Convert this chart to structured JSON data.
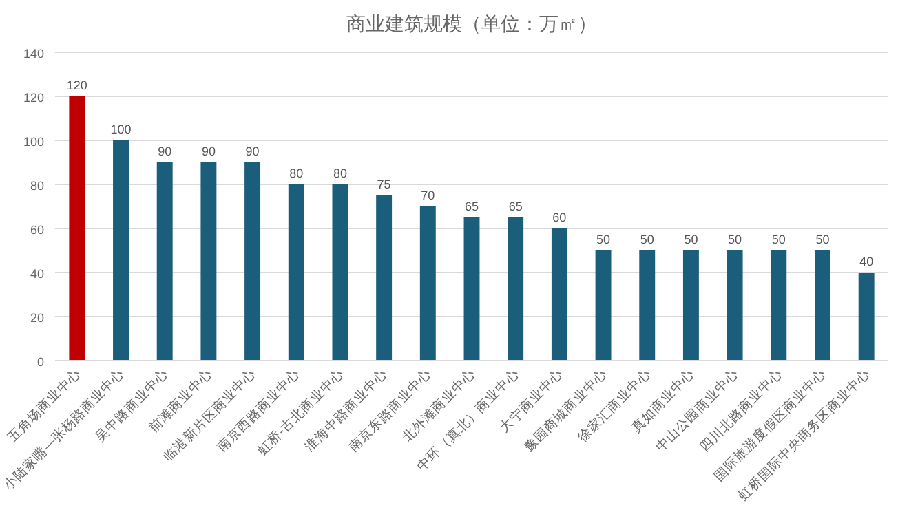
{
  "chart_data": {
    "type": "bar",
    "title": "商业建筑规模（单位：万㎡）",
    "categories": [
      "五角场商业中心",
      "小陆家嘴—张杨路商业中心",
      "吴中路商业中心",
      "前滩商业中心",
      "临港新片区商业中心",
      "南京西路商业中心",
      "虹桥-古北商业中心",
      "淮海中路商业中心",
      "南京东路商业中心",
      "北外滩商业中心",
      "中环（真北）商业中心",
      "大宁商业中心",
      "豫园商城商业中心",
      "徐家汇商业中心",
      "真如商业中心",
      "中山公园商业中心",
      "四川北路商业中心",
      "国际旅游度假区商业中心",
      "虹桥国际中央商务区商业中心"
    ],
    "values": [
      120,
      100,
      90,
      90,
      90,
      80,
      80,
      75,
      70,
      65,
      65,
      60,
      50,
      50,
      50,
      50,
      50,
      50,
      40
    ],
    "colors": [
      "#c00000",
      "#1b5e7b",
      "#1b5e7b",
      "#1b5e7b",
      "#1b5e7b",
      "#1b5e7b",
      "#1b5e7b",
      "#1b5e7b",
      "#1b5e7b",
      "#1b5e7b",
      "#1b5e7b",
      "#1b5e7b",
      "#1b5e7b",
      "#1b5e7b",
      "#1b5e7b",
      "#1b5e7b",
      "#1b5e7b",
      "#1b5e7b",
      "#1b5e7b"
    ],
    "ylim": [
      0,
      140
    ],
    "yticks": [
      0,
      20,
      40,
      60,
      80,
      100,
      120,
      140
    ],
    "grid": "y",
    "data_labels": true
  }
}
